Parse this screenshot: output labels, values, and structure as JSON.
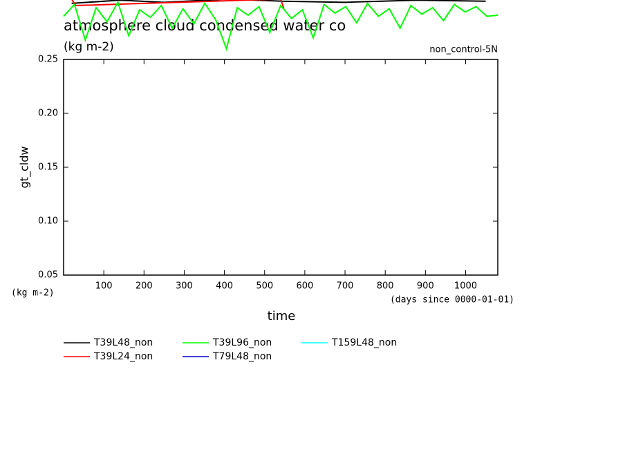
{
  "chart_data": {
    "type": "line",
    "title": "atmosphere cloud condensed water co",
    "subtitle": "(kg m-2)",
    "annotation": "non_control-5N",
    "ylabel": "gt_cldw",
    "y_unit": "(kg m-2)",
    "xlabel": "time",
    "x_unit": "(days since 0000-01-01)",
    "xlim": [
      0,
      1080
    ],
    "xticks": [
      100,
      200,
      300,
      400,
      500,
      600,
      700,
      800,
      900,
      1000
    ],
    "ylim": [
      0.05,
      0.25
    ],
    "yticks": [
      0.05,
      {
        "value": 0.1,
        "label": "0.10"
      },
      0.15,
      {
        "value": 0.2,
        "label": "0.20"
      },
      0.25
    ],
    "series": [
      {
        "name": "T39L48_non",
        "color": "#000000",
        "x": [
          20,
          140,
          250,
          410,
          545,
          700,
          880,
          1050
        ],
        "values": [
          0.302,
          0.305,
          0.303,
          0.306,
          0.304,
          0.303,
          0.305,
          0.304
        ]
      },
      {
        "name": "T39L24_non",
        "color": "#ff0000",
        "x": [
          20,
          30,
          540,
          548
        ],
        "values": [
          0.306,
          0.3,
          0.306,
          0.297
        ]
      },
      {
        "name": "T39L96_non",
        "color": "#00ff00",
        "x": [
          0,
          27,
          54,
          81,
          108,
          135,
          162,
          189,
          216,
          243,
          270,
          297,
          324,
          351,
          378,
          405,
          432,
          459,
          486,
          513,
          540,
          567,
          594,
          621,
          648,
          675,
          702,
          729,
          756,
          783,
          810,
          837,
          864,
          891,
          918,
          945,
          972,
          999,
          1026,
          1053,
          1080
        ],
        "values": [
          0.29,
          0.301,
          0.268,
          0.298,
          0.285,
          0.303,
          0.272,
          0.296,
          0.289,
          0.3,
          0.279,
          0.297,
          0.283,
          0.302,
          0.287,
          0.26,
          0.298,
          0.291,
          0.299,
          0.275,
          0.3,
          0.288,
          0.296,
          0.27,
          0.301,
          0.293,
          0.299,
          0.284,
          0.302,
          0.29,
          0.297,
          0.279,
          0.3,
          0.292,
          0.298,
          0.286,
          0.301,
          0.294,
          0.299,
          0.29,
          0.291
        ]
      },
      {
        "name": "T79L48_non",
        "color": "#0000cc",
        "x": [],
        "values": []
      },
      {
        "name": "T159L48_non",
        "color": "#00ffff",
        "x": [],
        "values": []
      }
    ]
  }
}
